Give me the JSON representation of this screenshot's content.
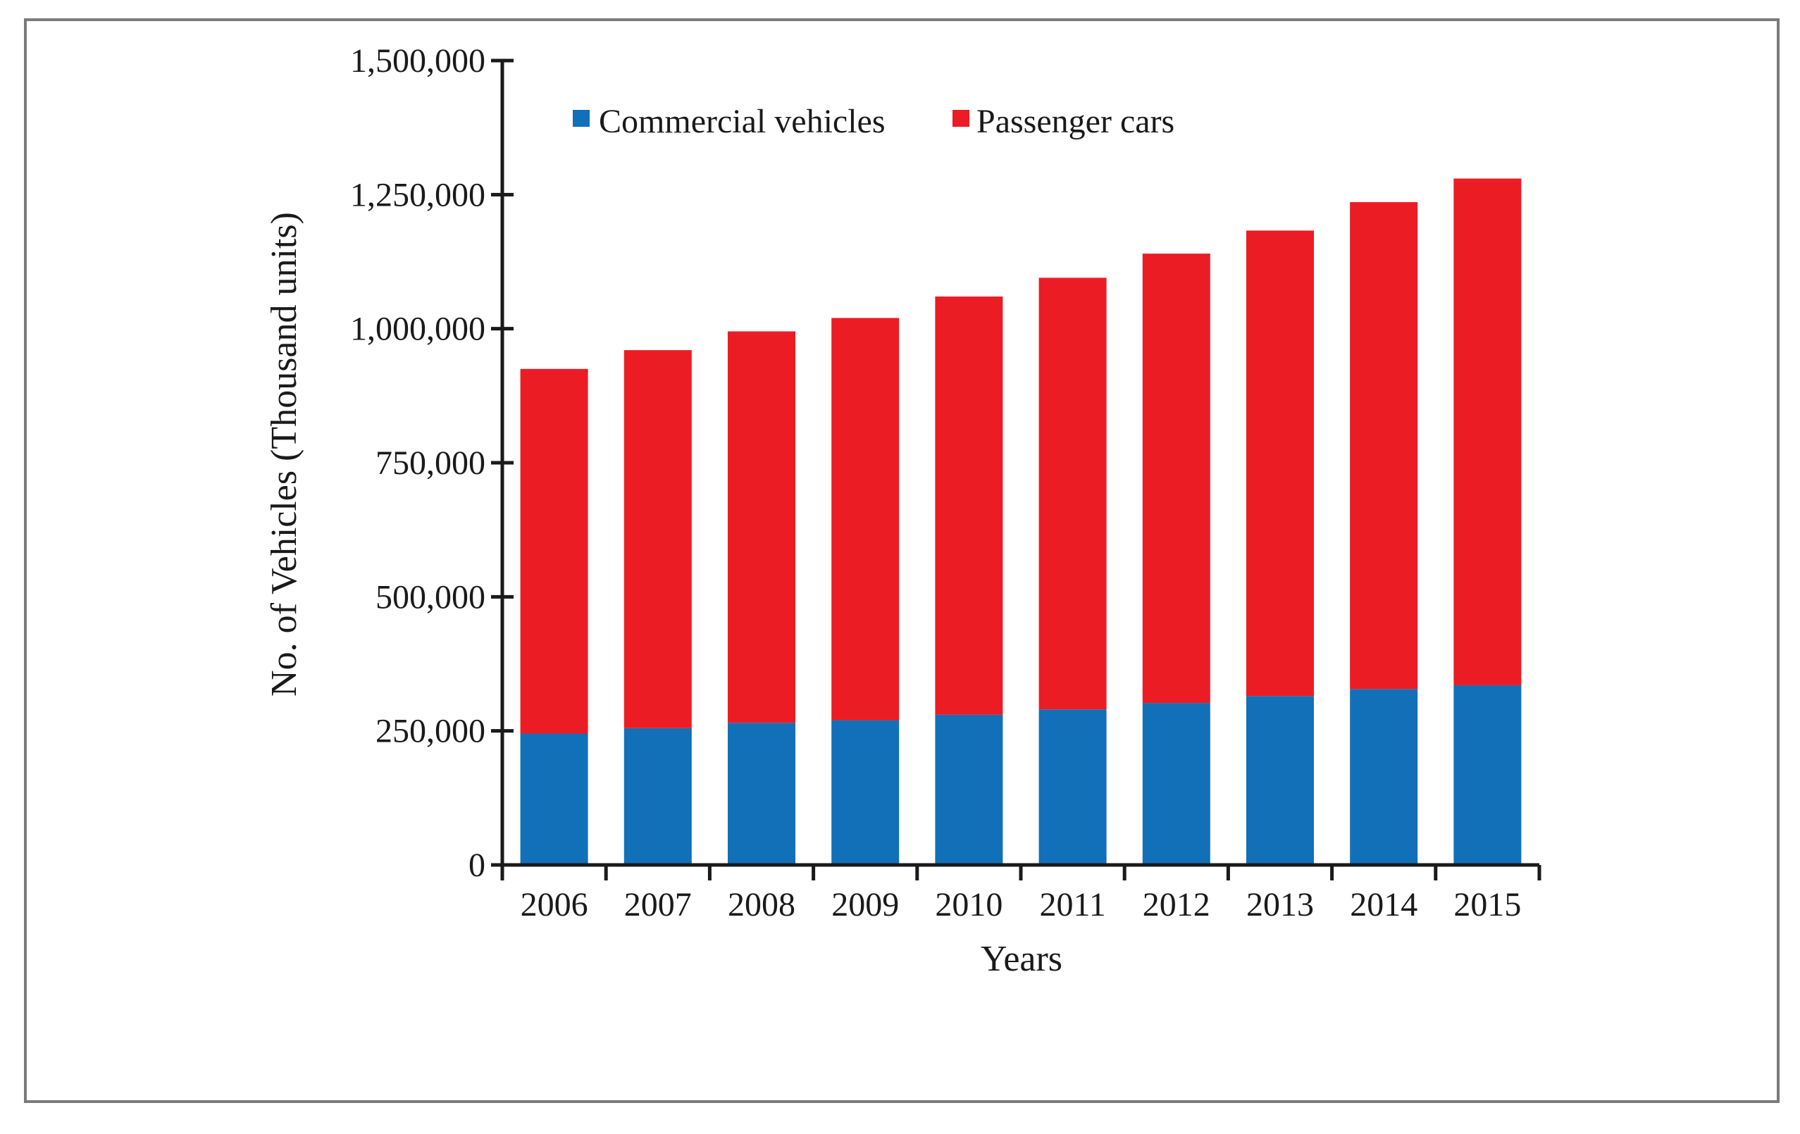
{
  "chart_data": {
    "type": "bar",
    "stacked": true,
    "title": "",
    "xlabel": "Years",
    "ylabel": "No. of Vehicles (Thousand units)",
    "categories": [
      "2006",
      "2007",
      "2008",
      "2009",
      "2010",
      "2011",
      "2012",
      "2013",
      "2014",
      "2015"
    ],
    "series": [
      {
        "name": "Commercial vehicles",
        "color": "#1170b8",
        "values": [
          245000,
          255000,
          265000,
          270000,
          280000,
          290000,
          302000,
          315000,
          328000,
          335000
        ]
      },
      {
        "name": "Passenger cars",
        "color": "#ec1c24",
        "values": [
          680000,
          705000,
          730000,
          750000,
          780000,
          805000,
          838000,
          868000,
          908000,
          945000
        ]
      }
    ],
    "ylim": [
      0,
      1500000
    ],
    "yticks": [
      0,
      250000,
      500000,
      750000,
      1000000,
      1250000,
      1500000
    ],
    "ytick_labels": [
      "0",
      "250,000",
      "500,000",
      "750,000",
      "1,000,000",
      "1,250,000",
      "1,500,000"
    ],
    "grid": false,
    "legend_position": "top-left"
  }
}
